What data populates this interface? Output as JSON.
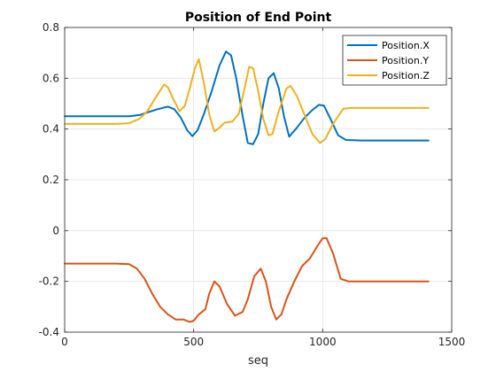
{
  "chart_data": {
    "type": "line",
    "title": "Position of End Point",
    "xlabel": "seq",
    "ylabel": "",
    "xlim": [
      0,
      1500
    ],
    "ylim": [
      -0.4,
      0.8
    ],
    "xticks": [
      "0",
      "500",
      "1000",
      "1500"
    ],
    "yticks": [
      "-0.4",
      "-0.2",
      "0",
      "0.2",
      "0.4",
      "0.6",
      "0.8"
    ],
    "grid": true,
    "legend_position": "top-right",
    "series": [
      {
        "name": "Position.X",
        "color": "#0072BD",
        "points": [
          [
            0,
            0.45
          ],
          [
            100,
            0.45
          ],
          [
            200,
            0.45
          ],
          [
            250,
            0.45
          ],
          [
            290,
            0.455
          ],
          [
            320,
            0.465
          ],
          [
            360,
            0.478
          ],
          [
            400,
            0.488
          ],
          [
            425,
            0.478
          ],
          [
            450,
            0.445
          ],
          [
            475,
            0.395
          ],
          [
            495,
            0.372
          ],
          [
            515,
            0.395
          ],
          [
            540,
            0.46
          ],
          [
            570,
            0.55
          ],
          [
            600,
            0.65
          ],
          [
            625,
            0.705
          ],
          [
            645,
            0.69
          ],
          [
            665,
            0.6
          ],
          [
            690,
            0.45
          ],
          [
            710,
            0.345
          ],
          [
            730,
            0.34
          ],
          [
            750,
            0.38
          ],
          [
            770,
            0.5
          ],
          [
            790,
            0.6
          ],
          [
            810,
            0.62
          ],
          [
            830,
            0.56
          ],
          [
            850,
            0.45
          ],
          [
            870,
            0.37
          ],
          [
            900,
            0.405
          ],
          [
            930,
            0.445
          ],
          [
            960,
            0.475
          ],
          [
            985,
            0.495
          ],
          [
            1005,
            0.492
          ],
          [
            1030,
            0.44
          ],
          [
            1060,
            0.375
          ],
          [
            1090,
            0.357
          ],
          [
            1150,
            0.355
          ],
          [
            1410,
            0.355
          ]
        ]
      },
      {
        "name": "Position.Y",
        "color": "#D95319",
        "points": [
          [
            0,
            -0.13
          ],
          [
            100,
            -0.13
          ],
          [
            200,
            -0.13
          ],
          [
            250,
            -0.132
          ],
          [
            280,
            -0.15
          ],
          [
            310,
            -0.19
          ],
          [
            340,
            -0.25
          ],
          [
            370,
            -0.3
          ],
          [
            400,
            -0.33
          ],
          [
            430,
            -0.35
          ],
          [
            460,
            -0.35
          ],
          [
            485,
            -0.36
          ],
          [
            500,
            -0.355
          ],
          [
            520,
            -0.33
          ],
          [
            545,
            -0.31
          ],
          [
            560,
            -0.25
          ],
          [
            580,
            -0.2
          ],
          [
            600,
            -0.22
          ],
          [
            630,
            -0.29
          ],
          [
            660,
            -0.335
          ],
          [
            690,
            -0.32
          ],
          [
            710,
            -0.27
          ],
          [
            735,
            -0.18
          ],
          [
            760,
            -0.15
          ],
          [
            780,
            -0.2
          ],
          [
            800,
            -0.3
          ],
          [
            820,
            -0.35
          ],
          [
            840,
            -0.33
          ],
          [
            860,
            -0.27
          ],
          [
            890,
            -0.2
          ],
          [
            920,
            -0.14
          ],
          [
            950,
            -0.11
          ],
          [
            980,
            -0.06
          ],
          [
            1000,
            -0.03
          ],
          [
            1015,
            -0.03
          ],
          [
            1040,
            -0.09
          ],
          [
            1070,
            -0.19
          ],
          [
            1100,
            -0.2
          ],
          [
            1410,
            -0.2
          ]
        ]
      },
      {
        "name": "Position.Z",
        "color": "#EDB120",
        "points": [
          [
            0,
            0.42
          ],
          [
            100,
            0.42
          ],
          [
            200,
            0.42
          ],
          [
            250,
            0.423
          ],
          [
            290,
            0.44
          ],
          [
            320,
            0.47
          ],
          [
            350,
            0.52
          ],
          [
            385,
            0.575
          ],
          [
            400,
            0.565
          ],
          [
            420,
            0.52
          ],
          [
            445,
            0.47
          ],
          [
            465,
            0.49
          ],
          [
            485,
            0.56
          ],
          [
            505,
            0.64
          ],
          [
            520,
            0.675
          ],
          [
            540,
            0.58
          ],
          [
            560,
            0.46
          ],
          [
            580,
            0.39
          ],
          [
            600,
            0.405
          ],
          [
            620,
            0.425
          ],
          [
            650,
            0.43
          ],
          [
            675,
            0.46
          ],
          [
            695,
            0.55
          ],
          [
            715,
            0.645
          ],
          [
            730,
            0.64
          ],
          [
            750,
            0.55
          ],
          [
            770,
            0.44
          ],
          [
            790,
            0.375
          ],
          [
            805,
            0.38
          ],
          [
            830,
            0.47
          ],
          [
            860,
            0.56
          ],
          [
            875,
            0.57
          ],
          [
            900,
            0.53
          ],
          [
            930,
            0.455
          ],
          [
            960,
            0.38
          ],
          [
            990,
            0.345
          ],
          [
            1010,
            0.36
          ],
          [
            1040,
            0.42
          ],
          [
            1080,
            0.48
          ],
          [
            1110,
            0.483
          ],
          [
            1410,
            0.483
          ]
        ]
      }
    ]
  }
}
